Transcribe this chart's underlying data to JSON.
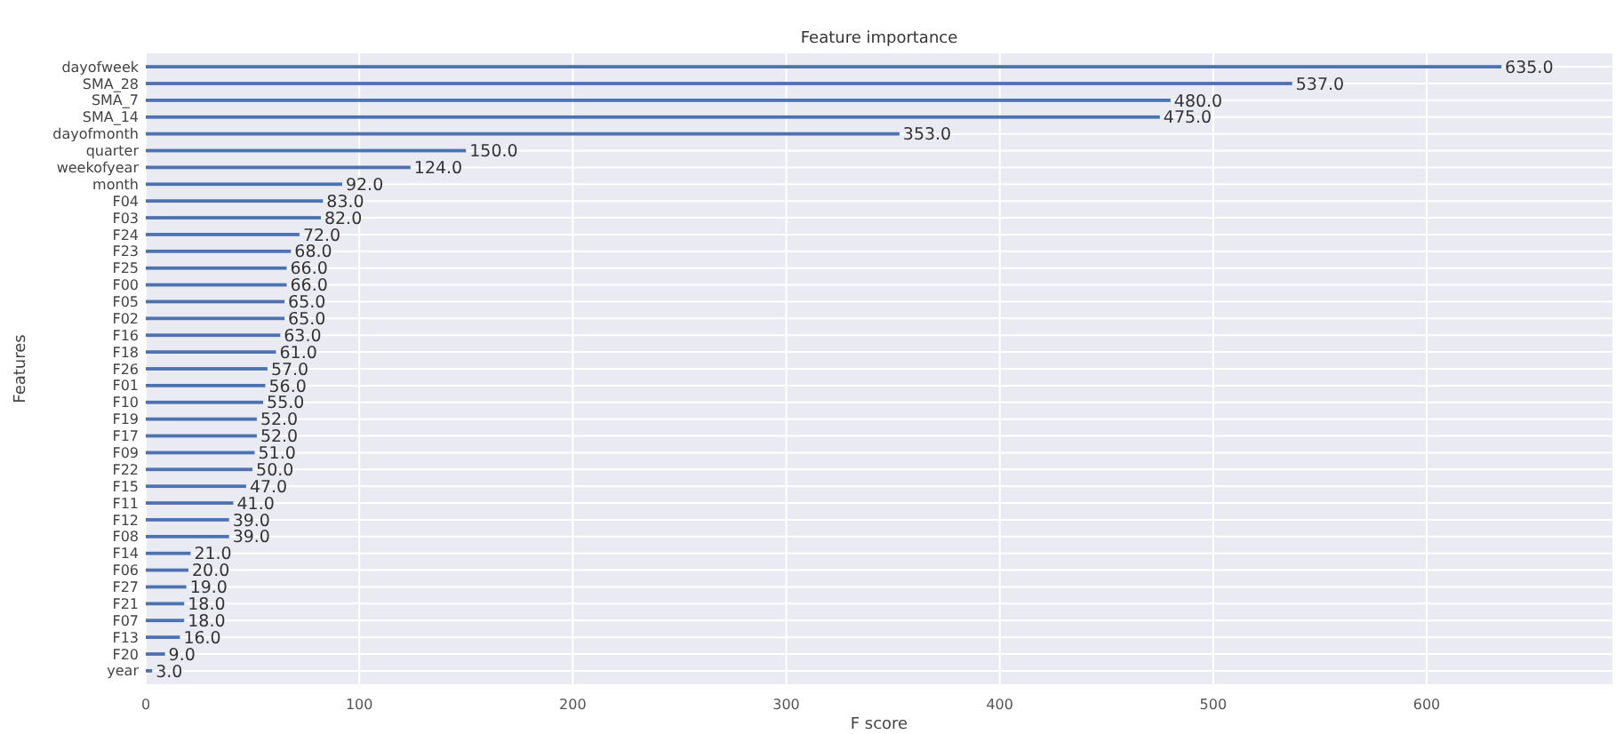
{
  "chart_data": {
    "type": "bar",
    "orientation": "horizontal",
    "title": "Feature importance",
    "xlabel": "F score",
    "ylabel": "Features",
    "categories": [
      "dayofweek",
      "SMA_28",
      "SMA_7",
      "SMA_14",
      "dayofmonth",
      "quarter",
      "weekofyear",
      "month",
      "F04",
      "F03",
      "F24",
      "F23",
      "F25",
      "F00",
      "F05",
      "F02",
      "F16",
      "F18",
      "F26",
      "F01",
      "F10",
      "F19",
      "F17",
      "F09",
      "F22",
      "F15",
      "F11",
      "F12",
      "F08",
      "F14",
      "F06",
      "F27",
      "F21",
      "F07",
      "F13",
      "F20",
      "year"
    ],
    "values": [
      635,
      537,
      480,
      475,
      353,
      150,
      124,
      92,
      83,
      82,
      72,
      68,
      66,
      66,
      65,
      65,
      63,
      61,
      57,
      56,
      55,
      52,
      52,
      51,
      50,
      47,
      41,
      39,
      39,
      21,
      20,
      19,
      18,
      18,
      16,
      9,
      3
    ],
    "value_labels": [
      "635.0",
      "537.0",
      "480.0",
      "475.0",
      "353.0",
      "150.0",
      "124.0",
      "92.0",
      "83.0",
      "82.0",
      "72.0",
      "68.0",
      "66.0",
      "66.0",
      "65.0",
      "65.0",
      "63.0",
      "61.0",
      "57.0",
      "56.0",
      "55.0",
      "52.0",
      "52.0",
      "51.0",
      "50.0",
      "47.0",
      "41.0",
      "39.0",
      "39.0",
      "21.0",
      "20.0",
      "19.0",
      "18.0",
      "18.0",
      "16.0",
      "9.0",
      "3.0"
    ],
    "color": "#4c72b0",
    "xlim": [
      0,
      687
    ],
    "xticks": [
      0,
      100,
      200,
      300,
      400,
      500,
      600
    ],
    "grid": true
  }
}
